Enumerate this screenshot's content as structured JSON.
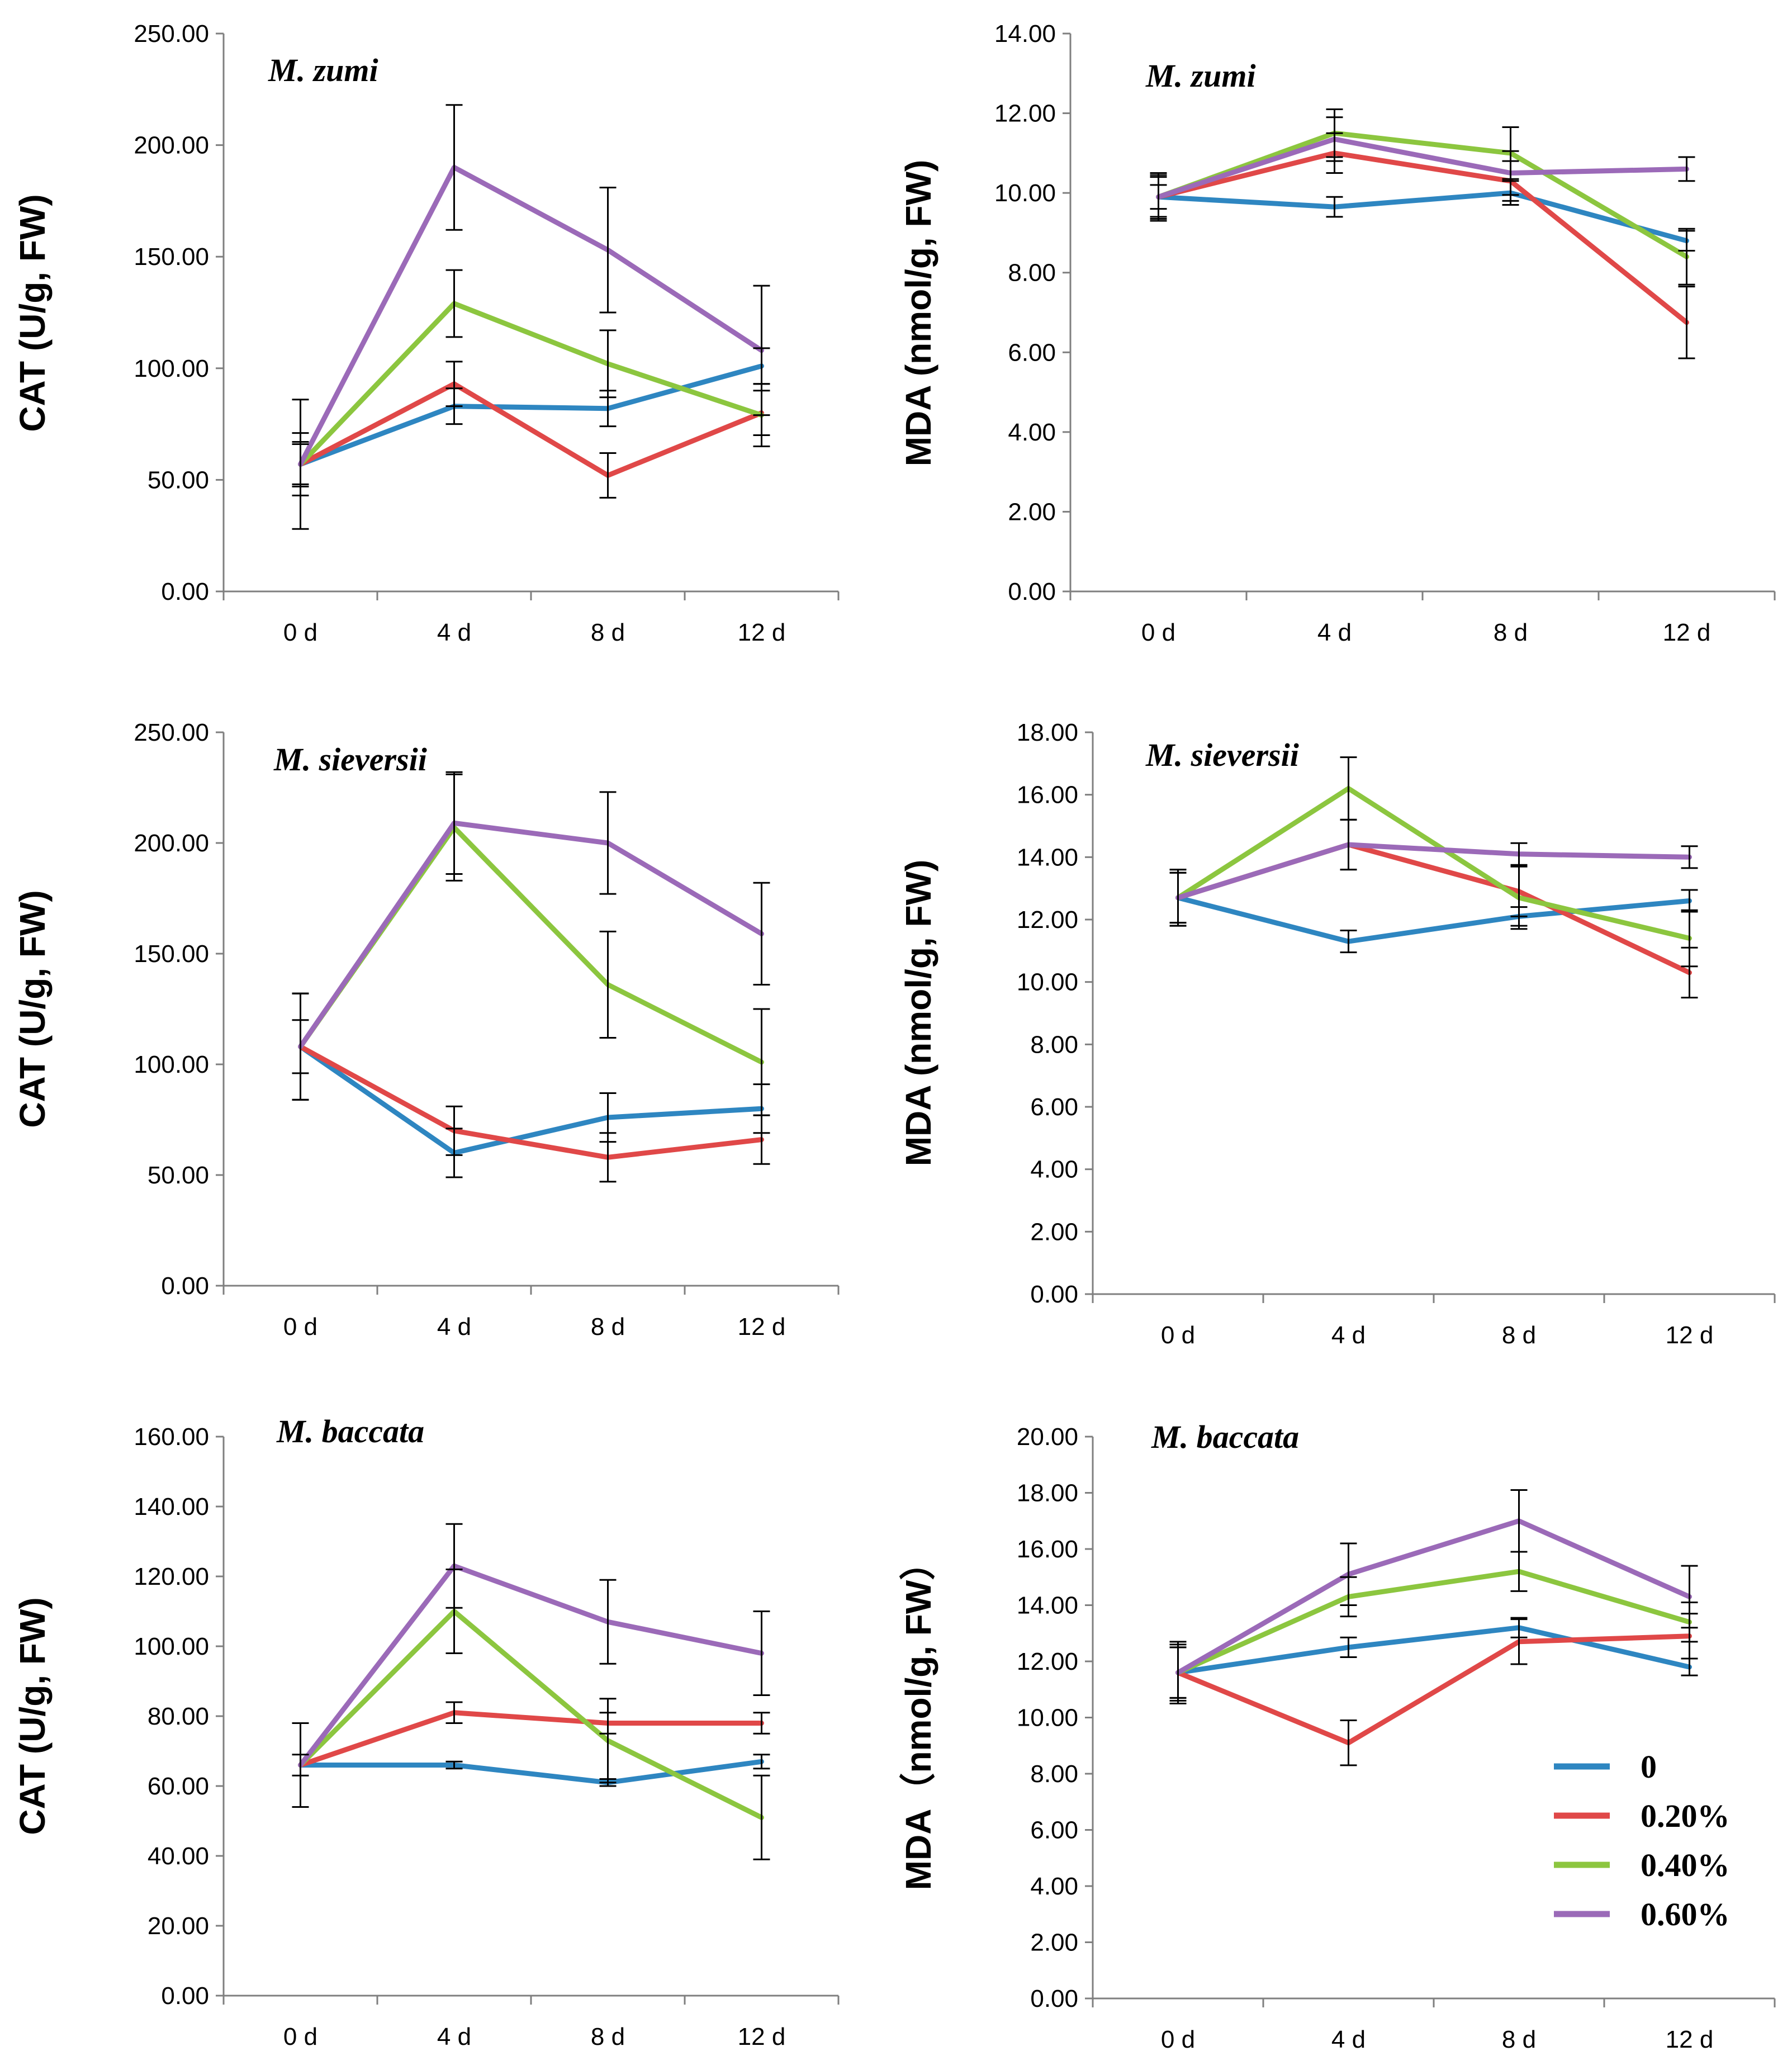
{
  "colors": {
    "control": "#2e86c1",
    "low": "#e04848",
    "mid": "#8cc63f",
    "high": "#9b6ab8",
    "axis": "#7f7f7f",
    "errorbar": "#000000"
  },
  "legend": [
    {
      "name": "0",
      "color_key": "control"
    },
    {
      "name": "0.20%",
      "color_key": "low"
    },
    {
      "name": "0.40%",
      "color_key": "mid"
    },
    {
      "name": "0.60%",
      "color_key": "high"
    }
  ],
  "chart_data": [
    {
      "type": "line",
      "title": "M. zumi",
      "ylabel": "CAT (U/g, FW)",
      "categories": [
        "0 d",
        "4 d",
        "8 d",
        "12 d"
      ],
      "ylim": [
        0,
        250
      ],
      "yticks": [
        "0.00",
        "50.00",
        "100.00",
        "150.00",
        "200.00",
        "250.00"
      ],
      "series": [
        {
          "name": "0",
          "values": [
            57,
            83,
            82,
            101
          ],
          "errors": [
            9,
            8,
            8,
            8
          ]
        },
        {
          "name": "0.20%",
          "values": [
            57,
            93,
            52,
            80
          ],
          "errors": [
            10,
            10,
            10,
            10
          ]
        },
        {
          "name": "0.40%",
          "values": [
            57,
            129,
            102,
            79
          ],
          "errors": [
            14,
            15,
            15,
            14
          ]
        },
        {
          "name": "0.60%",
          "values": [
            57,
            190,
            153,
            108
          ],
          "errors": [
            29,
            28,
            28,
            29
          ]
        }
      ]
    },
    {
      "type": "line",
      "title": "M. zumi",
      "ylabel": "MDA (nmol/g, FW)",
      "categories": [
        "0 d",
        "4 d",
        "8 d",
        "12 d"
      ],
      "ylim": [
        0,
        14
      ],
      "yticks": [
        "0.00",
        "2.00",
        "4.00",
        "6.00",
        "8.00",
        "10.00",
        "12.00",
        "14.00"
      ],
      "series": [
        {
          "name": "0",
          "values": [
            9.9,
            9.65,
            10.0,
            8.8
          ],
          "errors": [
            0.3,
            0.25,
            0.3,
            0.25
          ]
        },
        {
          "name": "0.20%",
          "values": [
            9.9,
            11.0,
            10.3,
            6.75
          ],
          "errors": [
            0.5,
            0.5,
            0.5,
            0.9
          ]
        },
        {
          "name": "0.40%",
          "values": [
            9.9,
            11.5,
            11.0,
            8.4
          ],
          "errors": [
            0.6,
            0.6,
            0.65,
            0.7
          ]
        },
        {
          "name": "0.60%",
          "values": [
            9.9,
            11.35,
            10.5,
            10.6
          ],
          "errors": [
            0.55,
            0.55,
            0.55,
            0.3
          ]
        }
      ]
    },
    {
      "type": "line",
      "title": "M. sieversii",
      "ylabel": "CAT (U/g, FW)",
      "categories": [
        "0 d",
        "4 d",
        "8 d",
        "12 d"
      ],
      "ylim": [
        0,
        250
      ],
      "yticks": [
        "0.00",
        "50.00",
        "100.00",
        "150.00",
        "200.00",
        "250.00"
      ],
      "series": [
        {
          "name": "0",
          "values": [
            108,
            60,
            76,
            80
          ],
          "errors": [
            12,
            11,
            11,
            11
          ]
        },
        {
          "name": "0.20%",
          "values": [
            108,
            70,
            58,
            66
          ],
          "errors": [
            24,
            11,
            11,
            11
          ]
        },
        {
          "name": "0.40%",
          "values": [
            108,
            207,
            136,
            101
          ],
          "errors": [
            24,
            24,
            24,
            24
          ]
        },
        {
          "name": "0.60%",
          "values": [
            108,
            209,
            200,
            159
          ],
          "errors": [
            24,
            23,
            23,
            23
          ]
        }
      ]
    },
    {
      "type": "line",
      "title": "M. sieversii",
      "ylabel": "MDA (nmol/g, FW)",
      "categories": [
        "0 d",
        "4 d",
        "8 d",
        "12 d"
      ],
      "ylim": [
        0,
        18
      ],
      "yticks": [
        "0.00",
        "2.00",
        "4.00",
        "6.00",
        "8.00",
        "10.00",
        "12.00",
        "14.00",
        "16.00",
        "18.00"
      ],
      "series": [
        {
          "name": "0",
          "values": [
            12.7,
            11.3,
            12.1,
            12.6
          ],
          "errors": [
            0.8,
            0.35,
            0.3,
            0.35
          ]
        },
        {
          "name": "0.20%",
          "values": [
            12.7,
            14.4,
            12.9,
            10.3
          ],
          "errors": [
            0.8,
            0.8,
            0.8,
            0.8
          ]
        },
        {
          "name": "0.40%",
          "values": [
            12.7,
            16.2,
            12.7,
            11.4
          ],
          "errors": [
            0.9,
            1.0,
            1.0,
            0.9
          ]
        },
        {
          "name": "0.60%",
          "values": [
            12.7,
            14.4,
            14.1,
            14.0
          ],
          "errors": [
            0.9,
            0.8,
            0.35,
            0.35
          ]
        }
      ]
    },
    {
      "type": "line",
      "title": "M. baccata",
      "ylabel": "CAT (U/g, FW)",
      "categories": [
        "0 d",
        "4 d",
        "8 d",
        "12 d"
      ],
      "ylim": [
        0,
        160
      ],
      "yticks": [
        "0.00",
        "20.00",
        "40.00",
        "60.00",
        "80.00",
        "100.00",
        "120.00",
        "140.00",
        "160.00"
      ],
      "series": [
        {
          "name": "0",
          "values": [
            66,
            66,
            61,
            67
          ],
          "errors": [
            3,
            1,
            1,
            2
          ]
        },
        {
          "name": "0.20%",
          "values": [
            66,
            81,
            78,
            78
          ],
          "errors": [
            12,
            3,
            3,
            3
          ]
        },
        {
          "name": "0.40%",
          "values": [
            66,
            110,
            73,
            51
          ],
          "errors": [
            12,
            12,
            12,
            12
          ]
        },
        {
          "name": "0.60%",
          "values": [
            66,
            123,
            107,
            98
          ],
          "errors": [
            12,
            12,
            12,
            12
          ]
        }
      ]
    },
    {
      "type": "line",
      "title": "M. baccata",
      "ylabel": "MDA（nmol/g, FW）",
      "categories": [
        "0 d",
        "4 d",
        "8 d",
        "12 d"
      ],
      "ylim": [
        0,
        20
      ],
      "yticks": [
        "0.00",
        "2.00",
        "4.00",
        "6.00",
        "8.00",
        "10.00",
        "12.00",
        "14.00",
        "16.00",
        "18.00",
        "20.00"
      ],
      "series": [
        {
          "name": "0",
          "values": [
            11.6,
            12.5,
            13.2,
            11.8
          ],
          "errors": [
            0.9,
            0.35,
            0.35,
            0.3
          ]
        },
        {
          "name": "0.20%",
          "values": [
            11.6,
            9.1,
            12.7,
            12.9
          ],
          "errors": [
            0.9,
            0.8,
            0.8,
            0.8
          ]
        },
        {
          "name": "0.40%",
          "values": [
            11.6,
            14.3,
            15.2,
            13.4
          ],
          "errors": [
            1.0,
            0.7,
            0.7,
            0.7
          ]
        },
        {
          "name": "0.60%",
          "values": [
            11.6,
            15.1,
            17.0,
            14.3
          ],
          "errors": [
            1.1,
            1.1,
            1.1,
            1.1
          ]
        }
      ]
    }
  ]
}
